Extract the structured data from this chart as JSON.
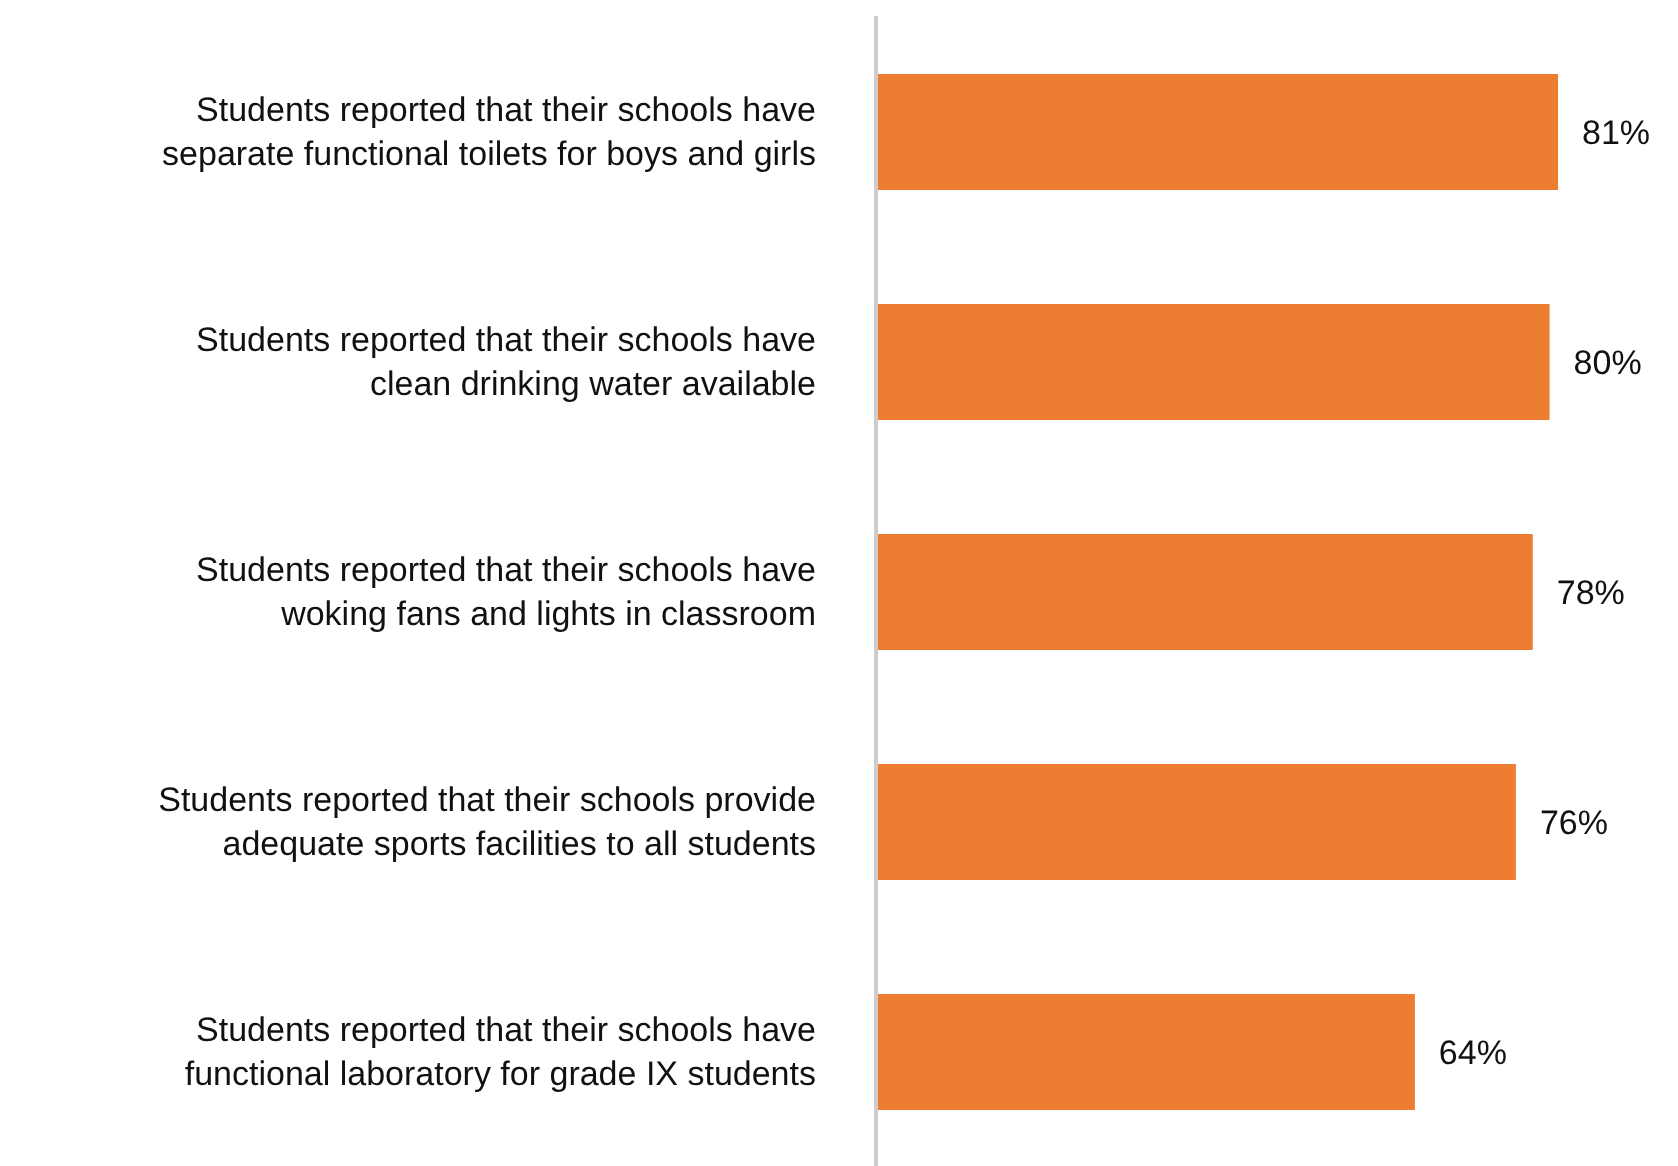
{
  "chart_data": {
    "type": "bar",
    "orientation": "horizontal",
    "categories": [
      "Students reported that their schools have separate functional toilets for boys and girls",
      "Students reported that their schools have clean drinking water available",
      "Students reported that their schools have woking fans and lights in classroom",
      "Students reported that their schools provide adequate sports facilities to all students",
      "Students reported that their schools have functional laboratory for grade IX students"
    ],
    "values": [
      81,
      80,
      78,
      76,
      64
    ],
    "value_labels": [
      "81%",
      "80%",
      "78%",
      "76%",
      "64%"
    ],
    "color": "#ed7d31",
    "tick_labels": "y"
  }
}
